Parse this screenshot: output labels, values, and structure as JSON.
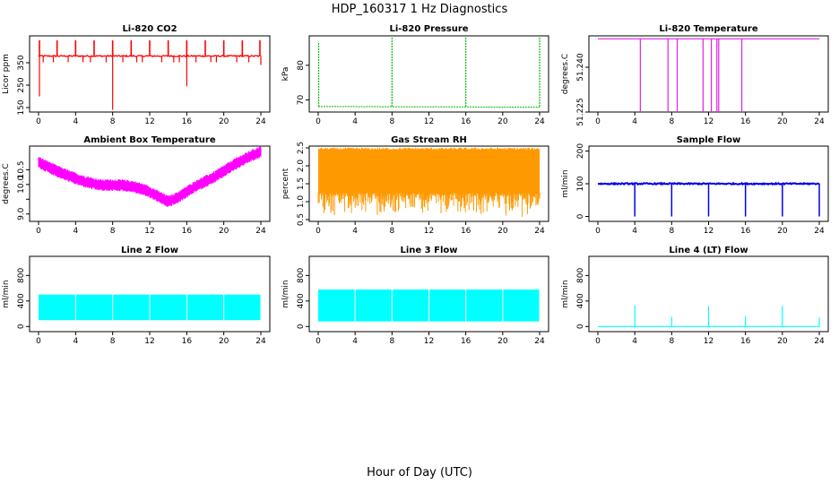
{
  "figure_title": "HDP_160317  1 Hz Diagnostics",
  "shared_xlabel": "Hour of Day (UTC)",
  "chart_data": [
    {
      "type": "line",
      "title": "Li-820 CO2",
      "ylabel": "Licor ppm",
      "color": "#ff0000",
      "xlim": [
        0,
        24
      ],
      "xticks": [
        0,
        4,
        8,
        12,
        16,
        20,
        24
      ],
      "ylim": [
        130,
        470
      ],
      "yticks": [
        150,
        250,
        350
      ],
      "baseline": 380,
      "noise": 6,
      "up_spikes": [
        0.1,
        2.0,
        4.0,
        6.0,
        8.0,
        10.0,
        12.0,
        14.0,
        16.0,
        18.0,
        20.0,
        22.0,
        23.9
      ],
      "up_spike_value": 450,
      "down_spikes": [
        [
          0.1,
          200
        ],
        [
          8.0,
          140
        ],
        [
          16.0,
          245
        ],
        [
          24.0,
          340
        ]
      ],
      "minor_dips": [
        0.5,
        1.6,
        3.2,
        4.8,
        5.6,
        7.3,
        9.1,
        10.6,
        11.2,
        13.3,
        14.6,
        15.2,
        17.0,
        18.6,
        19.2,
        21.4,
        22.7
      ]
    },
    {
      "type": "line",
      "title": "Li-820 Pressure",
      "ylabel": "kPa",
      "color": "#00bb00",
      "xlim": [
        0,
        24
      ],
      "xticks": [
        0,
        4,
        8,
        12,
        16,
        20,
        24
      ],
      "ylim": [
        66.5,
        88.5
      ],
      "yticks": [
        70,
        80
      ],
      "baseline_start": 68.1,
      "baseline_end": 67.9,
      "spikes": [
        [
          0.05,
          86.8
        ],
        [
          8.0,
          88.2
        ],
        [
          16.0,
          88.2
        ],
        [
          24.0,
          88.2
        ]
      ],
      "noise": 0.1
    },
    {
      "type": "line",
      "title": "Li-820 Temperature",
      "ylabel": "degrees.C",
      "color": "#e020e0",
      "xlim": [
        0,
        24
      ],
      "xticks": [
        0,
        4,
        8,
        12,
        16,
        20,
        24
      ],
      "ylim": [
        51.225,
        51.2505
      ],
      "yticks": [
        51.225,
        51.24
      ],
      "ytick_labels": [
        "51.225",
        "51.240"
      ],
      "value": 51.2495,
      "low_value": 51.225,
      "dropouts": [
        4.6,
        7.6,
        8.6,
        11.4,
        12.3,
        12.9,
        13.1,
        15.6
      ]
    },
    {
      "type": "line",
      "title": "Ambient Box Temperature",
      "ylabel": "degrees.C",
      "color": "#ff00ff",
      "xlim": [
        0,
        24
      ],
      "xticks": [
        0,
        4,
        8,
        12,
        16,
        20,
        24
      ],
      "ylim": [
        8.75,
        11.3
      ],
      "yticks": [
        9.0,
        9.5,
        10.0,
        10.5
      ],
      "ytick_labels": [
        "9.0",
        "",
        "10.0",
        "10.5"
      ],
      "x": [
        0,
        1,
        2,
        3,
        4,
        5,
        6,
        7,
        8,
        9,
        10,
        11,
        12,
        13,
        14,
        15,
        16,
        17,
        18,
        19,
        20,
        21,
        22,
        23,
        24
      ],
      "y": [
        10.75,
        10.6,
        10.45,
        10.32,
        10.2,
        10.1,
        10.02,
        9.97,
        9.98,
        9.97,
        9.94,
        9.86,
        9.75,
        9.58,
        9.42,
        9.55,
        9.75,
        9.95,
        10.1,
        10.25,
        10.45,
        10.65,
        10.82,
        10.98,
        11.1
      ],
      "band": 0.17
    },
    {
      "type": "line",
      "title": "Gas Stream RH",
      "ylabel": "percent",
      "color": "#ff9900",
      "xlim": [
        0,
        24
      ],
      "xticks": [
        0,
        4,
        8,
        12,
        16,
        20,
        24
      ],
      "ylim": [
        0.45,
        2.55
      ],
      "yticks": [
        0.5,
        1.0,
        1.5,
        2.0,
        2.5
      ],
      "ytick_labels": [
        "0.5",
        "1.0",
        "1.5",
        "2.0",
        "2.5"
      ],
      "upper": 2.45,
      "lower": 1.25,
      "min_dip": 0.55
    },
    {
      "type": "line",
      "title": "Sample Flow",
      "ylabel": "ml/min",
      "color": "#0000ee",
      "xlim": [
        0,
        24
      ],
      "xticks": [
        0,
        4,
        8,
        12,
        16,
        20,
        24
      ],
      "ylim": [
        -15,
        215
      ],
      "yticks": [
        0,
        100,
        200
      ],
      "baseline": 100,
      "noise": 4,
      "dips": [
        [
          4.0,
          0
        ],
        [
          8.0,
          0
        ],
        [
          12.0,
          0
        ],
        [
          16.0,
          0
        ],
        [
          20.0,
          0
        ],
        [
          24.0,
          0
        ]
      ]
    },
    {
      "type": "area",
      "title": "Line 2 Flow",
      "ylabel": "ml/min",
      "color": "#00ffff",
      "xlim": [
        0,
        24
      ],
      "xticks": [
        0,
        4,
        8,
        12,
        16,
        20,
        24
      ],
      "ylim": [
        -80,
        1100
      ],
      "yticks": [
        0,
        400,
        800
      ],
      "upper": 500,
      "lower": 100,
      "gaps": [
        4.0,
        8.0,
        12.0,
        16.0,
        20.0,
        24.0
      ]
    },
    {
      "type": "area",
      "title": "Line 3 Flow",
      "ylabel": "ml/min",
      "color": "#00ffff",
      "xlim": [
        0,
        24
      ],
      "xticks": [
        0,
        4,
        8,
        12,
        16,
        20,
        24
      ],
      "ylim": [
        -80,
        1100
      ],
      "yticks": [
        0,
        400,
        800
      ],
      "upper": 580,
      "lower": 80,
      "gaps": [
        4.0,
        8.0,
        12.0,
        16.0,
        20.0,
        24.0
      ]
    },
    {
      "type": "line",
      "title": "Line 4 (LT) Flow",
      "ylabel": "ml/min",
      "color": "#00ffff",
      "xlim": [
        0,
        24
      ],
      "xticks": [
        0,
        4,
        8,
        12,
        16,
        20,
        24
      ],
      "ylim": [
        -80,
        1100
      ],
      "yticks": [
        0,
        400,
        800
      ],
      "baseline": 0,
      "spikes": [
        [
          4.0,
          330
        ],
        [
          8.0,
          150
        ],
        [
          12.0,
          320
        ],
        [
          16.0,
          160
        ],
        [
          20.0,
          320
        ],
        [
          24.0,
          140
        ]
      ]
    }
  ]
}
